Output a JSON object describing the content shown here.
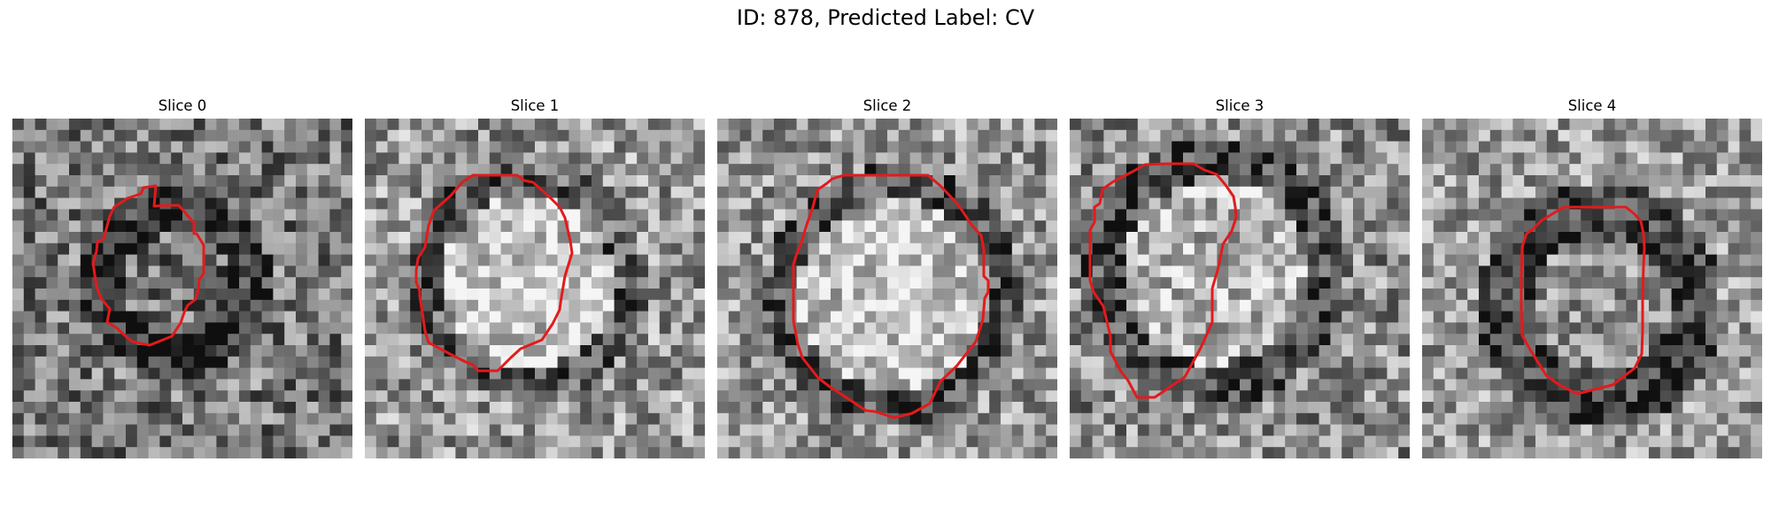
{
  "figure": {
    "title": "ID: 878, Predicted Label: CV"
  },
  "slices": [
    {
      "title": "Slice 0",
      "contour_color": "#e31a1c",
      "grid": 30
    },
    {
      "title": "Slice 1",
      "contour_color": "#e31a1c",
      "grid": 30
    },
    {
      "title": "Slice 2",
      "contour_color": "#e31a1c",
      "grid": 30
    },
    {
      "title": "Slice 3",
      "contour_color": "#e31a1c",
      "grid": 30
    },
    {
      "title": "Slice 4",
      "contour_color": "#e31a1c",
      "grid": 30
    }
  ]
}
